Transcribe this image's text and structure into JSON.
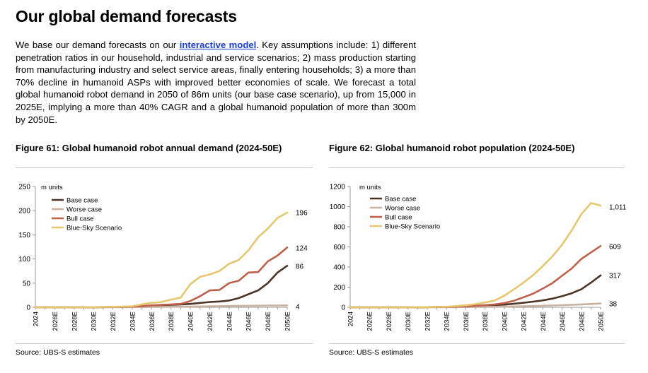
{
  "header": {
    "title": "Our global demand forecasts",
    "intro_before": "We base our demand forecasts on our ",
    "intro_link": "interactive model",
    "intro_after": ". Key assumptions include: 1) different penetration ratios in our household, industrial and service scenarios; 2) mass production starting from manufacturing industry and select service areas, finally entering households; 3) a more than 70% decline in humanoid ASPs with improved better economies of scale. We forecast a total global humanoid robot demand in 2050 of 86m units (our base case scenario), up from 15,000 in 2025E, implying a more than 40% CAGR and a global humanoid population of more than 300m by 2050E."
  },
  "colors": {
    "base": "#4a3526",
    "worse": "#c9b3a3",
    "bull": "#c0604a",
    "bluesky": "#e6c76c",
    "link": "#1a3fd6"
  },
  "chart_data": [
    {
      "id": "fig61",
      "type": "line",
      "title": "Figure 61: Global humanoid robot annual demand (2024-50E)",
      "source": "Source: UBS-S estimates",
      "unit_label": "m units",
      "legend_position": "top-left",
      "grid": false,
      "ylim": [
        0,
        250
      ],
      "yticks": [
        0,
        50,
        100,
        150,
        200,
        250
      ],
      "xlim": [
        2024,
        2050
      ],
      "xticks": [
        "2024",
        "2026E",
        "2028E",
        "2030E",
        "2032E",
        "2034E",
        "2036E",
        "2038E",
        "2040E",
        "2042E",
        "2044E",
        "2046E",
        "2048E",
        "2050E"
      ],
      "x": [
        2024,
        2025,
        2026,
        2027,
        2028,
        2029,
        2030,
        2031,
        2032,
        2033,
        2034,
        2035,
        2036,
        2037,
        2038,
        2039,
        2040,
        2041,
        2042,
        2043,
        2044,
        2045,
        2046,
        2047,
        2048,
        2049,
        2050
      ],
      "series": [
        {
          "name": "Base case",
          "color_key": "base",
          "values": [
            0,
            0,
            0,
            0,
            0,
            0.1,
            0.2,
            0.3,
            0.5,
            0.8,
            1.2,
            2,
            3,
            4,
            5,
            6,
            7,
            9,
            11,
            12,
            14,
            19,
            27,
            35,
            50,
            72,
            86
          ],
          "end_label": "86"
        },
        {
          "name": "Worse case",
          "color_key": "worse",
          "values": [
            0,
            0,
            0,
            0,
            0,
            0,
            0,
            0.1,
            0.1,
            0.2,
            0.3,
            0.5,
            0.7,
            0.9,
            1.1,
            1.3,
            1.5,
            1.8,
            2.1,
            2.4,
            2.7,
            3,
            3.2,
            3.4,
            3.6,
            3.8,
            4
          ],
          "end_label": "4"
        },
        {
          "name": "Bull case",
          "color_key": "bull",
          "values": [
            0,
            0,
            0,
            0,
            0,
            0.1,
            0.2,
            0.4,
            0.7,
            1,
            1.5,
            2.5,
            4,
            5,
            6,
            7,
            13,
            23,
            35,
            36,
            50,
            55,
            72,
            73,
            95,
            107,
            124
          ],
          "end_label": "124"
        },
        {
          "name": "Blue-Sky Scenario",
          "color_key": "bluesky",
          "values": [
            0,
            0,
            0,
            0,
            0,
            0.1,
            0.3,
            0.6,
            1,
            1.5,
            2,
            6,
            9,
            11,
            16,
            20,
            48,
            63,
            68,
            75,
            90,
            98,
            118,
            145,
            163,
            185,
            196
          ],
          "end_label": "196"
        }
      ]
    },
    {
      "id": "fig62",
      "type": "line",
      "title": "Figure 62: Global humanoid robot population (2024-50E)",
      "source": "Source: UBS-S estimates",
      "unit_label": "m units",
      "legend_position": "top-left",
      "grid": false,
      "ylim": [
        0,
        1200
      ],
      "yticks": [
        0,
        200,
        400,
        600,
        800,
        1000,
        1200
      ],
      "xlim": [
        2024,
        2050
      ],
      "xticks": [
        "2024",
        "2026E",
        "2028E",
        "2030E",
        "2032E",
        "2034E",
        "2036E",
        "2038E",
        "2040E",
        "2042E",
        "2044E",
        "2046E",
        "2048E",
        "2050E"
      ],
      "x": [
        2024,
        2025,
        2026,
        2027,
        2028,
        2029,
        2030,
        2031,
        2032,
        2033,
        2034,
        2035,
        2036,
        2037,
        2038,
        2039,
        2040,
        2041,
        2042,
        2043,
        2044,
        2045,
        2046,
        2047,
        2048,
        2049,
        2050
      ],
      "series": [
        {
          "name": "Base case",
          "color_key": "base",
          "values": [
            0,
            0,
            0,
            0,
            0,
            0.2,
            0.4,
            0.7,
            1.2,
            2,
            3,
            5,
            8,
            12,
            16,
            21,
            27,
            35,
            45,
            56,
            69,
            86,
            110,
            140,
            180,
            245,
            317
          ],
          "end_label": "317"
        },
        {
          "name": "Worse case",
          "color_key": "worse",
          "values": [
            0,
            0,
            0,
            0,
            0,
            0,
            0.1,
            0.2,
            0.3,
            0.5,
            0.8,
            1.3,
            2,
            2.8,
            3.8,
            5,
            6.5,
            8.3,
            10.4,
            12.8,
            15.5,
            18.5,
            21.7,
            25,
            28.6,
            33,
            38
          ],
          "end_label": "38"
        },
        {
          "name": "Bull case",
          "color_key": "bull",
          "values": [
            0,
            0,
            0,
            0,
            0,
            0.2,
            0.5,
            0.9,
            1.6,
            2.6,
            4,
            6.5,
            10.5,
            15.5,
            21.5,
            28.5,
            42,
            65,
            100,
            136,
            186,
            241,
            313,
            386,
            481,
            545,
            609
          ],
          "end_label": "609"
        },
        {
          "name": "Blue-Sky Scenario",
          "color_key": "bluesky",
          "values": [
            0,
            0,
            0,
            0,
            0,
            0.2,
            0.6,
            1.2,
            2.2,
            3.7,
            5.7,
            11.7,
            20.7,
            31.7,
            47.7,
            67.7,
            115,
            178,
            246,
            320,
            410,
            506,
            622,
            765,
            925,
            1035,
            1011
          ],
          "end_label": "1,011"
        }
      ]
    }
  ]
}
